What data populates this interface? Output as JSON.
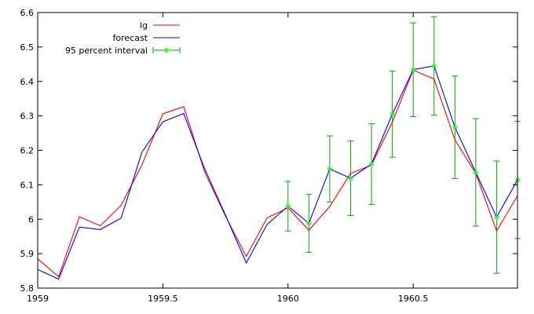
{
  "chart_data": {
    "type": "line",
    "title": "",
    "xlabel": "",
    "ylabel": "",
    "xlim": [
      1959,
      1960.9167
    ],
    "ylim": [
      5.8,
      6.6
    ],
    "xticks": [
      {
        "value": 1959,
        "label": "1959"
      },
      {
        "value": 1959.5,
        "label": "1959.5"
      },
      {
        "value": 1960,
        "label": "1960"
      },
      {
        "value": 1960.5,
        "label": "1960.5"
      }
    ],
    "yticks": [
      {
        "value": 5.8,
        "label": "5.8"
      },
      {
        "value": 5.9,
        "label": "5.9"
      },
      {
        "value": 6.0,
        "label": "6"
      },
      {
        "value": 6.1,
        "label": "6.1"
      },
      {
        "value": 6.2,
        "label": "6.2"
      },
      {
        "value": 6.3,
        "label": "6.3"
      },
      {
        "value": 6.4,
        "label": "6.4"
      },
      {
        "value": 6.5,
        "label": "6.5"
      },
      {
        "value": 6.6,
        "label": "6.6"
      }
    ],
    "legend_position": "top-left",
    "series": [
      {
        "name": "lg",
        "color": "#ff0000",
        "x": [
          1959.0,
          1959.0833,
          1959.1667,
          1959.25,
          1959.3333,
          1959.4167,
          1959.5,
          1959.5833,
          1959.6667,
          1959.75,
          1959.8333,
          1959.9167,
          1960.0,
          1960.0833,
          1960.1667,
          1960.25,
          1960.3333,
          1960.4167,
          1960.5,
          1960.5833,
          1960.6667,
          1960.75,
          1960.8333,
          1960.9167
        ],
        "values": [
          5.885,
          5.833,
          6.007,
          5.981,
          6.04,
          6.158,
          6.306,
          6.327,
          6.138,
          6.009,
          5.892,
          6.004,
          6.033,
          5.968,
          6.037,
          6.133,
          6.157,
          6.282,
          6.433,
          6.407,
          6.23,
          6.133,
          5.966,
          6.068
        ]
      },
      {
        "name": "forecast",
        "color": "#0000ff",
        "x": [
          1959.0,
          1959.0833,
          1959.1667,
          1959.25,
          1959.3333,
          1959.4167,
          1959.5,
          1959.5833,
          1959.6667,
          1959.75,
          1959.8333,
          1959.9167,
          1960.0,
          1960.0833,
          1960.1667,
          1960.25,
          1960.3333,
          1960.4167,
          1960.5,
          1960.5833,
          1960.6667,
          1960.75,
          1960.8333,
          1960.9167
        ],
        "values": [
          5.854,
          5.826,
          5.977,
          5.97,
          6.003,
          6.195,
          6.283,
          6.307,
          6.147,
          6.012,
          5.873,
          5.985,
          6.038,
          5.988,
          6.146,
          6.119,
          6.16,
          6.305,
          6.434,
          6.445,
          6.267,
          6.136,
          6.006,
          6.114
        ]
      },
      {
        "name": "95 percent interval",
        "color": "#00aa00",
        "marker_color": "#33ee33",
        "x": [
          1960.0,
          1960.0833,
          1960.1667,
          1960.25,
          1960.3333,
          1960.4167,
          1960.5,
          1960.5833,
          1960.6667,
          1960.75,
          1960.8333,
          1960.9167
        ],
        "values": [
          6.038,
          5.988,
          6.146,
          6.119,
          6.16,
          6.305,
          6.434,
          6.445,
          6.267,
          6.136,
          6.006,
          6.114
        ],
        "lower": [
          5.966,
          5.904,
          6.05,
          6.011,
          6.043,
          6.18,
          6.298,
          6.302,
          6.118,
          5.98,
          5.843,
          5.944
        ],
        "upper": [
          6.11,
          6.072,
          6.242,
          6.227,
          6.277,
          6.43,
          6.57,
          6.588,
          6.416,
          6.292,
          6.169,
          6.284
        ]
      }
    ]
  }
}
